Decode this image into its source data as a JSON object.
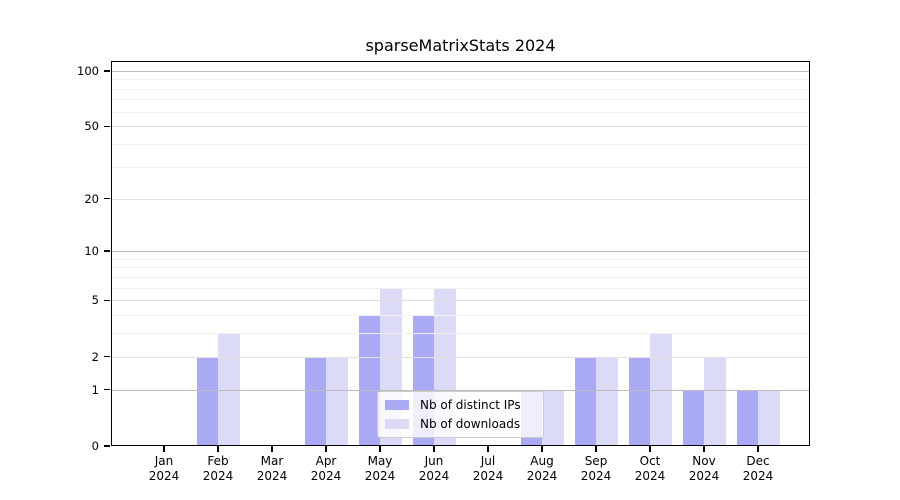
{
  "chart_data": {
    "type": "bar",
    "title": "sparseMatrixStats 2024",
    "categories": [
      "Jan",
      "Feb",
      "Mar",
      "Apr",
      "May",
      "Jun",
      "Jul",
      "Aug",
      "Sep",
      "Oct",
      "Nov",
      "Dec"
    ],
    "x_year_label": "2024",
    "series": [
      {
        "name": "Nb of distinct IPs",
        "color": "#a9a9f4",
        "values": [
          0,
          2,
          0,
          2,
          4,
          4,
          0,
          1,
          2,
          2,
          1,
          1
        ]
      },
      {
        "name": "Nb of downloads",
        "color": "#dbdbf8",
        "values": [
          0,
          3,
          0,
          2,
          6,
          6,
          0,
          1,
          2,
          3,
          2,
          1
        ]
      }
    ],
    "y_scale": "log1p",
    "y_ticks": [
      0,
      1,
      2,
      5,
      10,
      20,
      50,
      100
    ],
    "y_decade_ticks": [
      1,
      10,
      100
    ],
    "y_minor_ticks": [
      3,
      4,
      6,
      7,
      8,
      9,
      30,
      40,
      60,
      70,
      80,
      90
    ],
    "ylim": [
      0,
      113
    ],
    "grid": "horizontal",
    "grid_above_bars": true,
    "legend_position": "lower-center-inside",
    "colors": {
      "grid_decade": "#bcbcbc",
      "grid_mid": "#e0e0e0",
      "grid_minor": "#f1f1f1",
      "axis": "#000000",
      "background": "#ffffff"
    }
  }
}
